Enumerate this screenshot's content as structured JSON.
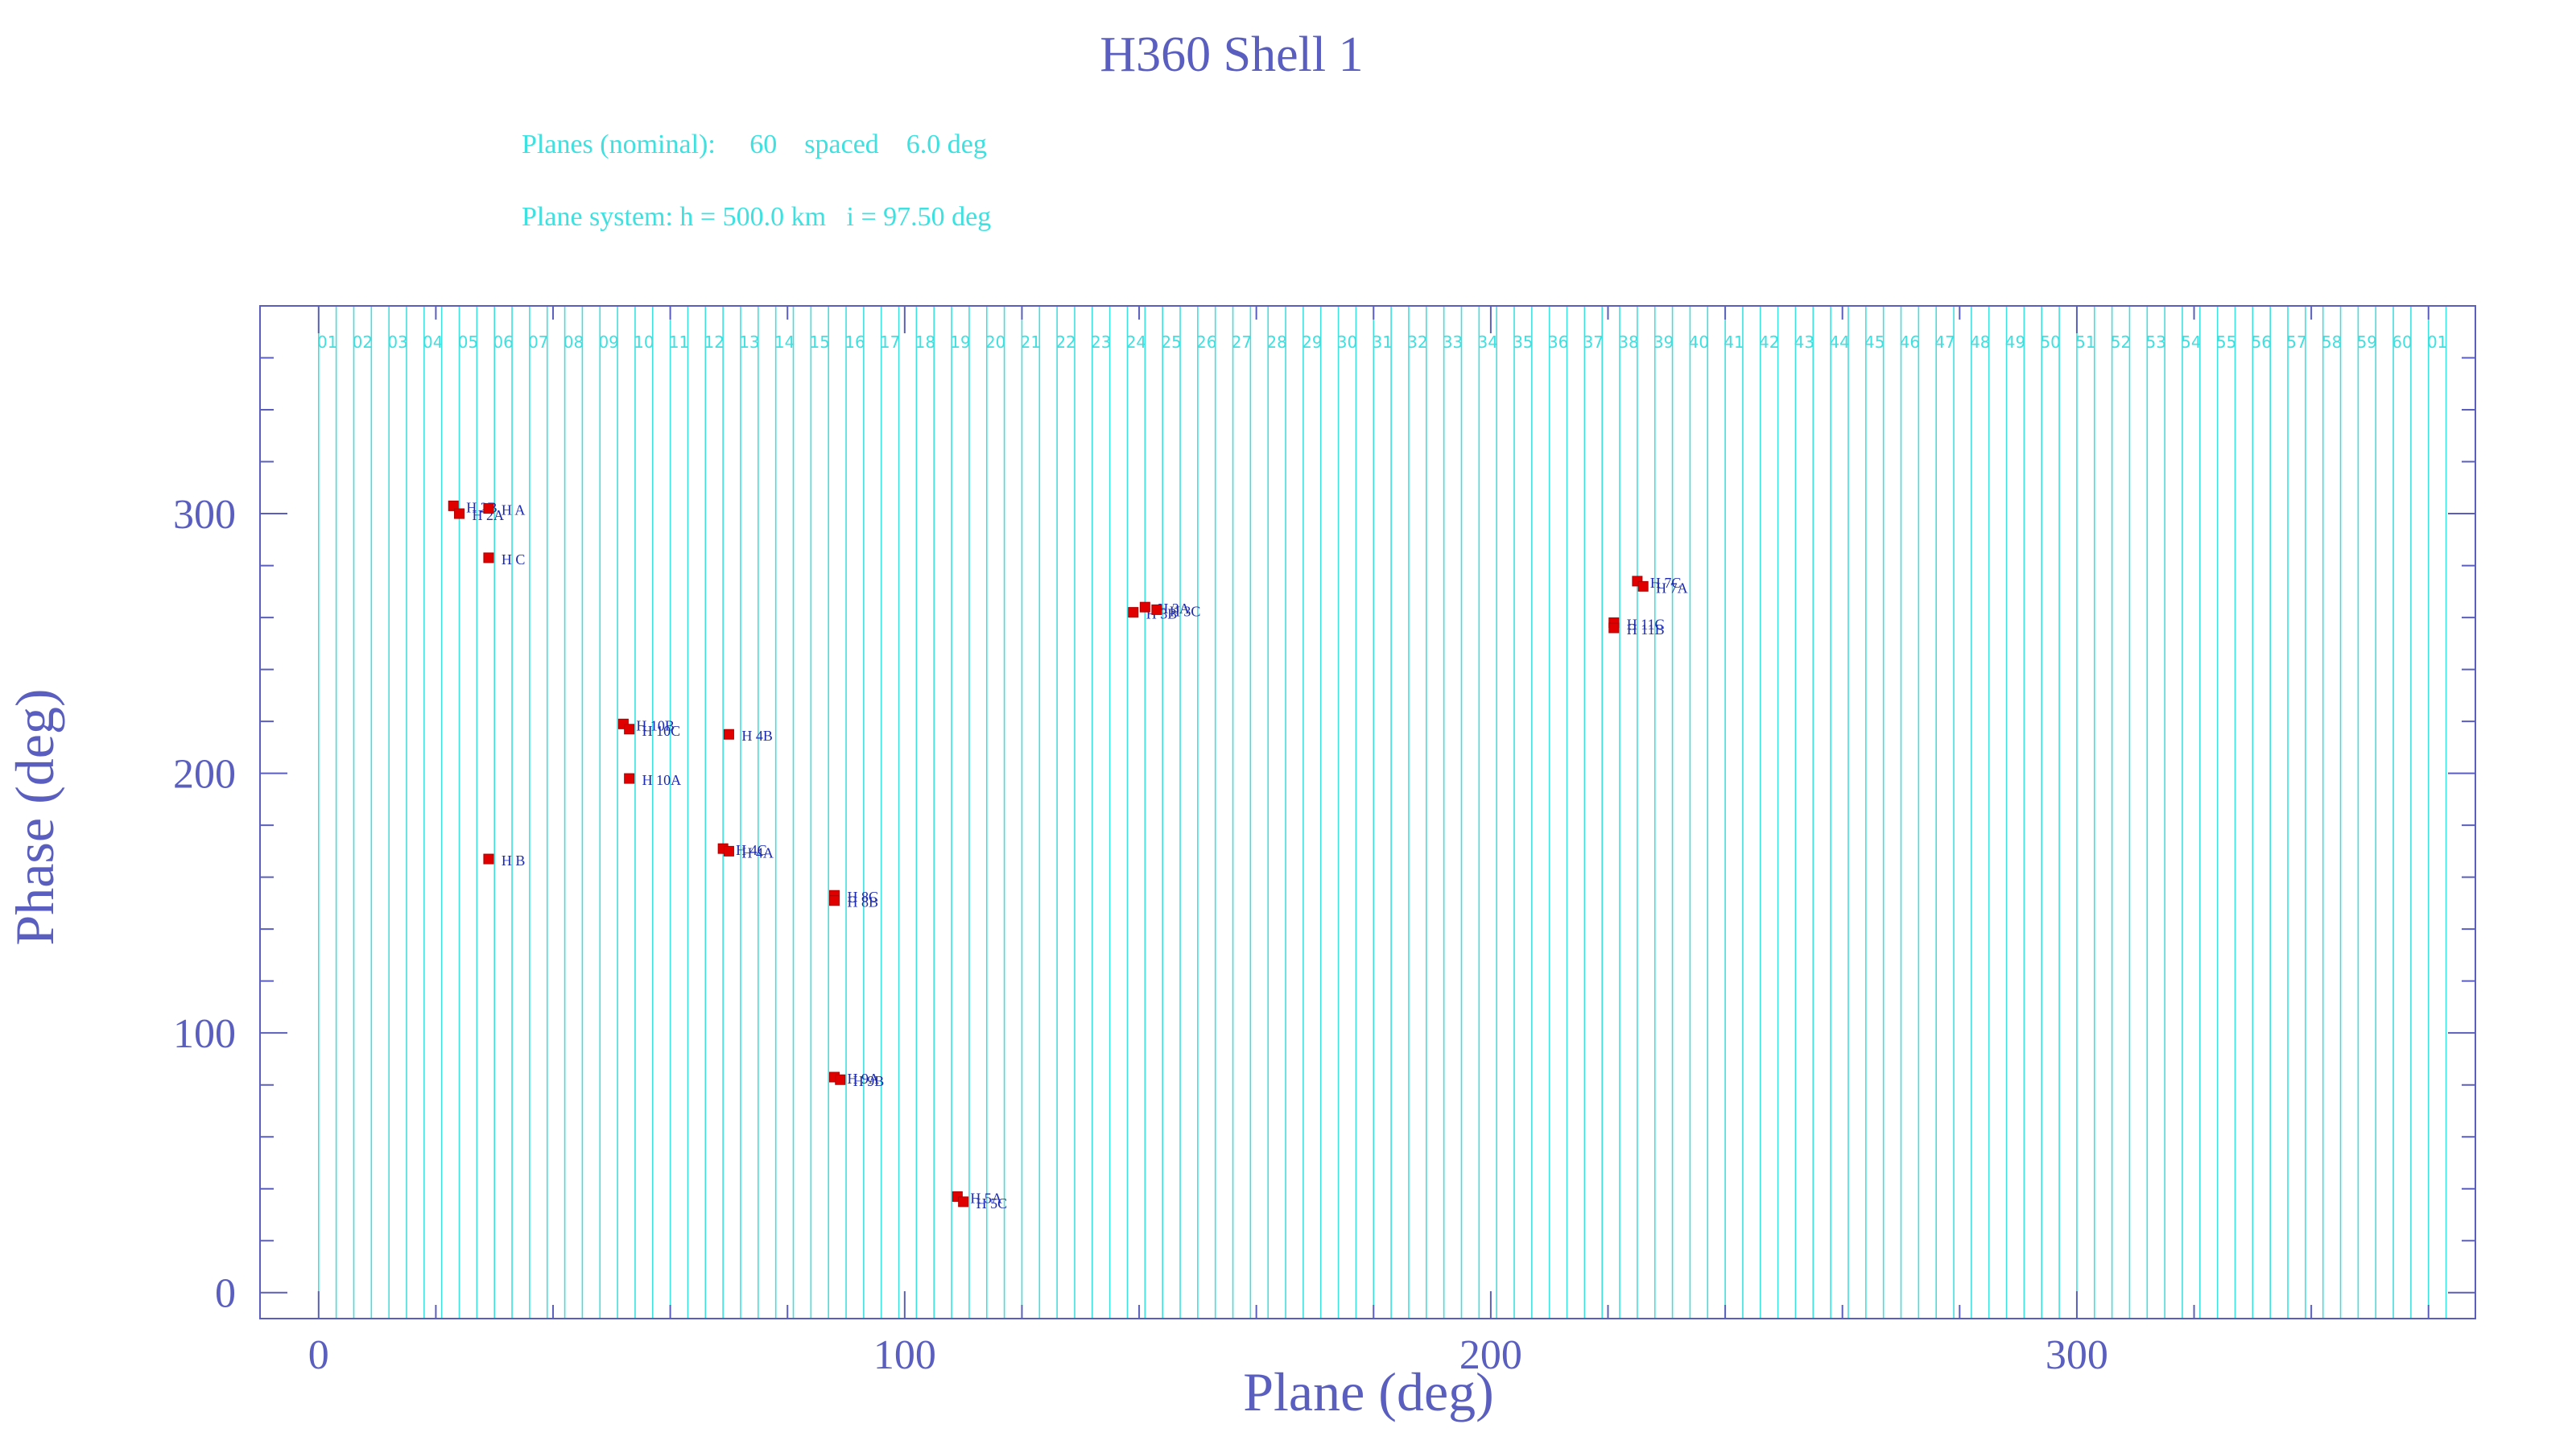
{
  "header": {
    "title": "H360 Shell 1",
    "info_line_1": "Planes (nominal):     60    spaced    6.0 deg",
    "info_line_2": "Plane system: h = 500.0 km   i = 97.50 deg"
  },
  "colors": {
    "axis": "#5a5fbf",
    "plane_lines": "#3fe0e0",
    "marker": "#e00000",
    "label": "#1b2ab0",
    "info_text": "#3fe0e0"
  },
  "chart_data": {
    "type": "scatter",
    "title": "H360 Shell 1",
    "xlabel": "Plane (deg)",
    "ylabel": "Phase (deg)",
    "xlim": [
      -10,
      368
    ],
    "ylim": [
      -10,
      380
    ],
    "x_ticks": [
      0,
      100,
      200,
      300
    ],
    "y_ticks": [
      0,
      100,
      200,
      300
    ],
    "plane_spacing": 6.0,
    "plane_labels": [
      "01",
      "02",
      "03",
      "04",
      "05",
      "06",
      "07",
      "08",
      "09",
      "10",
      "11",
      "12",
      "13",
      "14",
      "15",
      "16",
      "17",
      "18",
      "19",
      "20",
      "21",
      "22",
      "23",
      "24",
      "25",
      "26",
      "27",
      "28",
      "29",
      "30",
      "31",
      "32",
      "33",
      "34",
      "35",
      "36",
      "37",
      "38",
      "39",
      "40",
      "41",
      "42",
      "43",
      "44",
      "45",
      "46",
      "47",
      "48",
      "49",
      "50",
      "51",
      "52",
      "53",
      "54",
      "55",
      "56",
      "57",
      "58",
      "59",
      "60",
      "01"
    ],
    "points": [
      {
        "label": "H 2B",
        "x": 23,
        "y": 303
      },
      {
        "label": "H 2A",
        "x": 24,
        "y": 300
      },
      {
        "label": "H A",
        "x": 29,
        "y": 302
      },
      {
        "label": "H C",
        "x": 29,
        "y": 283
      },
      {
        "label": "H B",
        "x": 29,
        "y": 167
      },
      {
        "label": "H 10B",
        "x": 52,
        "y": 219
      },
      {
        "label": "H 10C",
        "x": 53,
        "y": 217
      },
      {
        "label": "H 10A",
        "x": 53,
        "y": 198
      },
      {
        "label": "H 4B",
        "x": 70,
        "y": 215
      },
      {
        "label": "H 4C",
        "x": 69,
        "y": 171
      },
      {
        "label": "H 4A",
        "x": 70,
        "y": 170
      },
      {
        "label": "H 8C",
        "x": 88,
        "y": 153
      },
      {
        "label": "H 8B",
        "x": 88,
        "y": 151
      },
      {
        "label": "H 9A",
        "x": 88,
        "y": 83
      },
      {
        "label": "H 9B",
        "x": 89,
        "y": 82
      },
      {
        "label": "H 5A",
        "x": 109,
        "y": 37
      },
      {
        "label": "H 5C",
        "x": 110,
        "y": 35
      },
      {
        "label": "H 3B",
        "x": 139,
        "y": 262
      },
      {
        "label": "H 3A",
        "x": 141,
        "y": 264
      },
      {
        "label": "H 3C",
        "x": 143,
        "y": 263
      },
      {
        "label": "H 7C",
        "x": 225,
        "y": 274
      },
      {
        "label": "H 7A",
        "x": 226,
        "y": 272
      },
      {
        "label": "H 11C",
        "x": 221,
        "y": 258
      },
      {
        "label": "H 11B",
        "x": 221,
        "y": 256
      }
    ]
  }
}
